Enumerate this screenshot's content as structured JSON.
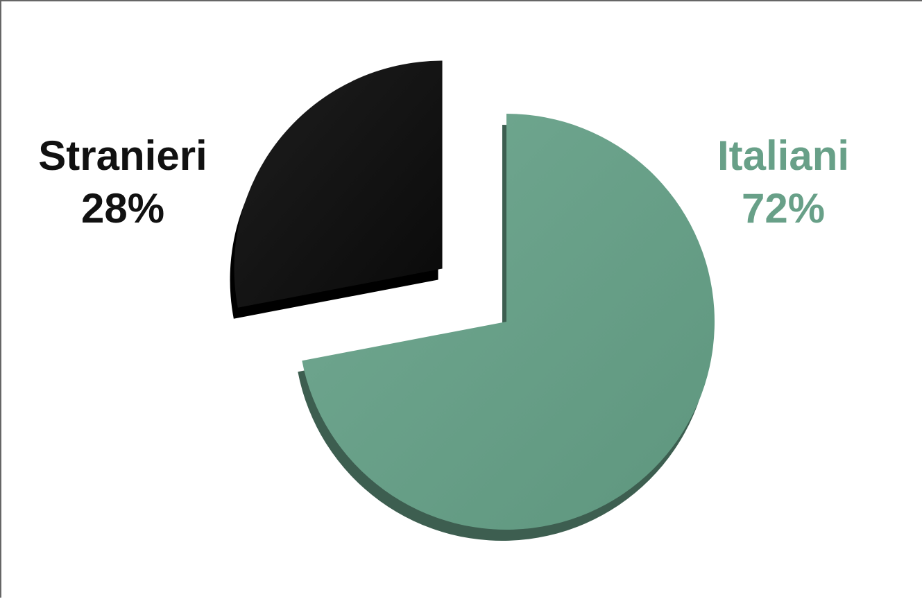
{
  "chart_data": {
    "type": "pie",
    "style": "3d-exploded",
    "slices": [
      {
        "label": "Italiani",
        "value": 72,
        "value_label": "72%",
        "color": "#68a088"
      },
      {
        "label": "Stranieri",
        "value": 28,
        "value_label": "28%",
        "color": "#111111"
      }
    ]
  }
}
